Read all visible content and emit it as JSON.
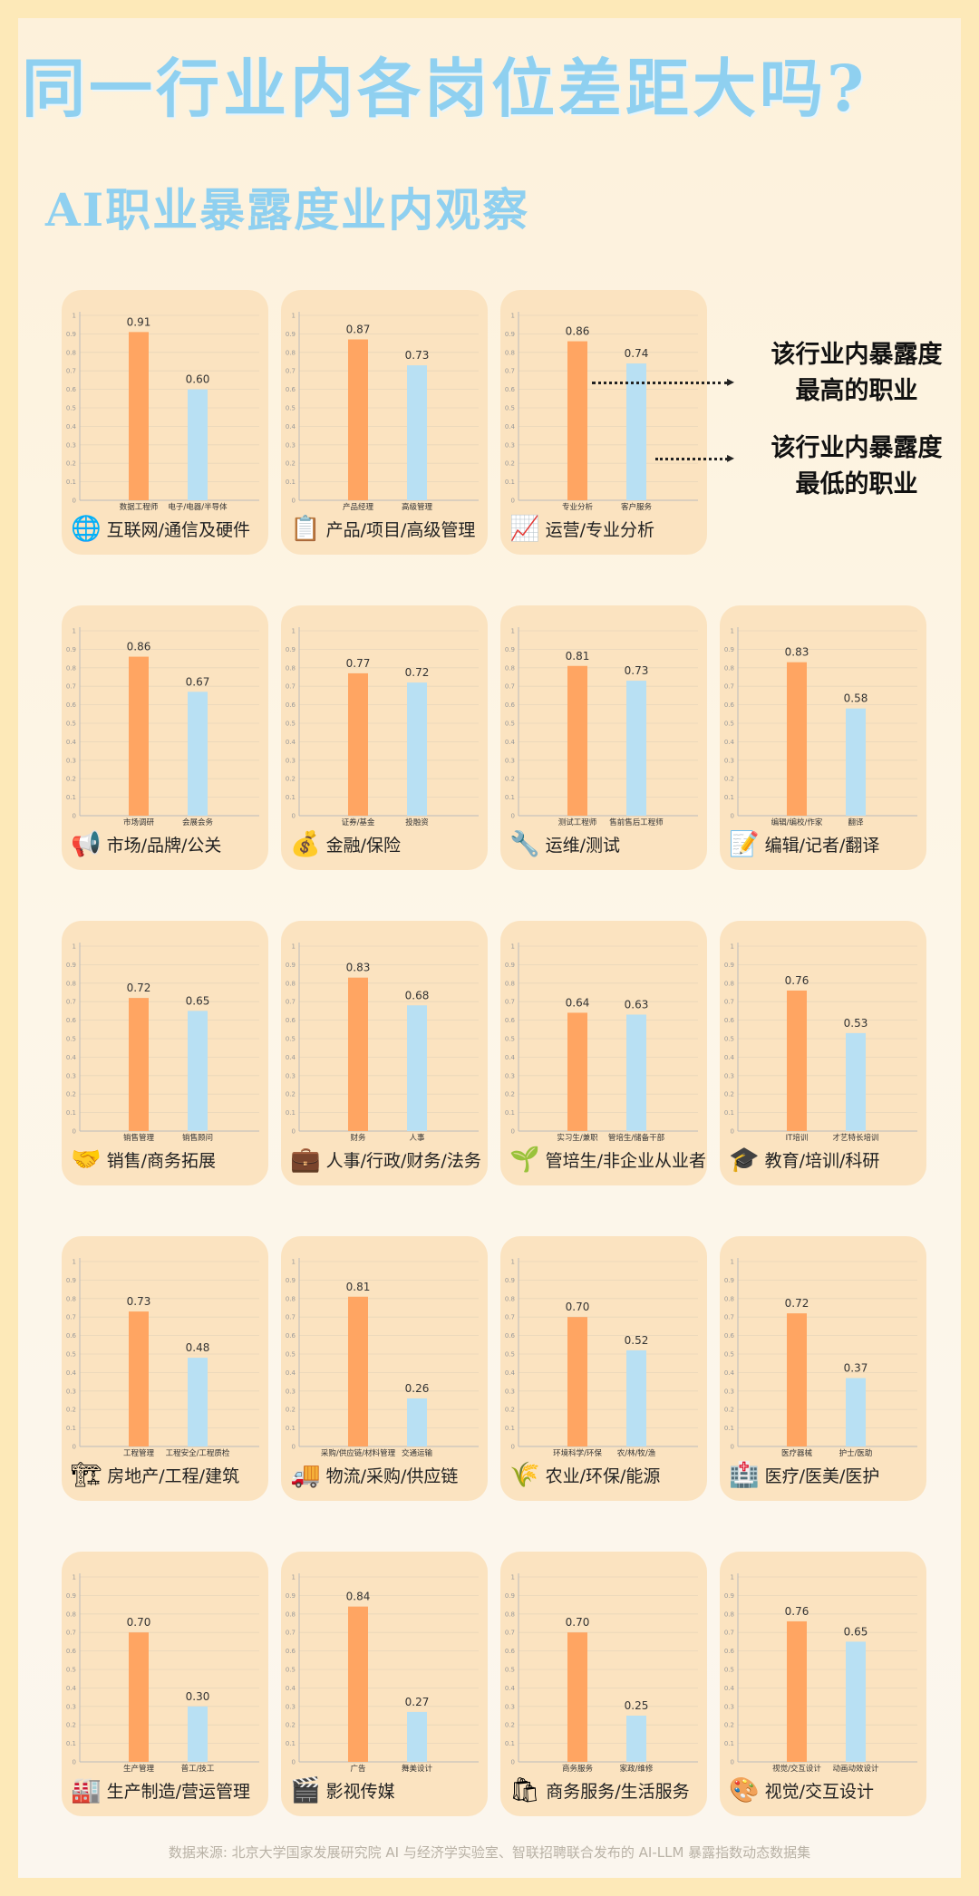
{
  "title": "同一行业内各岗位差距大吗?",
  "subtitle": "AI职业暴露度业内观察",
  "legend": {
    "highest": [
      "该行业内暴露度",
      "最高的职业"
    ],
    "lowest": [
      "该行业内暴露度",
      "最低的职业"
    ]
  },
  "source": "数据来源: 北京大学国家发展研究院 AI 与经济学实验室、智联招聘联合发布的 AI-LLM 暴露指数动态数据集",
  "colors": {
    "highest": "#ffa562",
    "lowest": "#b8e0f3",
    "card": "#fbe3c0",
    "title": "#8fd0f0"
  },
  "y_ticks": [
    "0",
    "0.1",
    "0.2",
    "0.3",
    "0.4",
    "0.5",
    "0.6",
    "0.7",
    "0.8",
    "0.9",
    "1"
  ],
  "chart_data": [
    {
      "type": "bar",
      "title": "互联网/通信及硬件",
      "icon": "globe-icon",
      "glyph": "🌐",
      "categories": [
        "数据工程师",
        "电子/电器/半导体"
      ],
      "values": [
        0.91,
        0.6
      ],
      "labels": [
        "0.91",
        "0.60"
      ],
      "ylim": [
        0,
        1
      ]
    },
    {
      "type": "bar",
      "title": "产品/项目/高级管理",
      "icon": "clipboard-icon",
      "glyph": "📋",
      "categories": [
        "产品经理",
        "高级管理"
      ],
      "values": [
        0.87,
        0.73
      ],
      "labels": [
        "0.87",
        "0.73"
      ],
      "ylim": [
        0,
        1
      ]
    },
    {
      "type": "bar",
      "title": "运营/专业分析",
      "icon": "chart-icon",
      "glyph": "📈",
      "categories": [
        "专业分析",
        "客户服务"
      ],
      "values": [
        0.86,
        0.74
      ],
      "labels": [
        "0.86",
        "0.74"
      ],
      "ylim": [
        0,
        1
      ]
    },
    {
      "type": "bar",
      "title": "市场/品牌/公关",
      "icon": "megaphone-icon",
      "glyph": "📢",
      "categories": [
        "市场调研",
        "会展会务"
      ],
      "values": [
        0.86,
        0.67
      ],
      "labels": [
        "0.86",
        "0.67"
      ],
      "ylim": [
        0,
        1
      ]
    },
    {
      "type": "bar",
      "title": "金融/保险",
      "icon": "money-bag-icon",
      "glyph": "💰",
      "categories": [
        "证券/基金",
        "投融资"
      ],
      "values": [
        0.77,
        0.72
      ],
      "labels": [
        "0.77",
        "0.72"
      ],
      "ylim": [
        0,
        1
      ]
    },
    {
      "type": "bar",
      "title": "运维/测试",
      "icon": "wrench-icon",
      "glyph": "🔧",
      "categories": [
        "测试工程师",
        "售前售后工程师"
      ],
      "values": [
        0.81,
        0.73
      ],
      "labels": [
        "0.81",
        "0.73"
      ],
      "ylim": [
        0,
        1
      ]
    },
    {
      "type": "bar",
      "title": "编辑/记者/翻译",
      "icon": "memo-icon",
      "glyph": "📝",
      "categories": [
        "编辑/编校/作家",
        "翻译"
      ],
      "values": [
        0.83,
        0.58
      ],
      "labels": [
        "0.83",
        "0.58"
      ],
      "ylim": [
        0,
        1
      ]
    },
    {
      "type": "bar",
      "title": "销售/商务拓展",
      "icon": "handshake-icon",
      "glyph": "🤝",
      "categories": [
        "销售管理",
        "销售顾问"
      ],
      "values": [
        0.72,
        0.65
      ],
      "labels": [
        "0.72",
        "0.65"
      ],
      "ylim": [
        0,
        1
      ]
    },
    {
      "type": "bar",
      "title": "人事/行政/财务/法务",
      "icon": "briefcase-icon",
      "glyph": "💼",
      "categories": [
        "财务",
        "人事"
      ],
      "values": [
        0.83,
        0.68
      ],
      "labels": [
        "0.83",
        "0.68"
      ],
      "ylim": [
        0,
        1
      ]
    },
    {
      "type": "bar",
      "title": "管培生/非企业从业者",
      "icon": "seedling-icon",
      "glyph": "🌱",
      "categories": [
        "实习生/兼职",
        "管培生/储备干部"
      ],
      "values": [
        0.64,
        0.63
      ],
      "labels": [
        "0.64",
        "0.63"
      ],
      "ylim": [
        0,
        1
      ]
    },
    {
      "type": "bar",
      "title": "教育/培训/科研",
      "icon": "graduation-cap-icon",
      "glyph": "🎓",
      "categories": [
        "IT培训",
        "才艺特长培训"
      ],
      "values": [
        0.76,
        0.53
      ],
      "labels": [
        "0.76",
        "0.53"
      ],
      "ylim": [
        0,
        1
      ]
    },
    {
      "type": "bar",
      "title": "房地产/工程/建筑",
      "icon": "crane-icon",
      "glyph": "🏗",
      "categories": [
        "工程管理",
        "工程安全/工程质检"
      ],
      "values": [
        0.73,
        0.48
      ],
      "labels": [
        "0.73",
        "0.48"
      ],
      "ylim": [
        0,
        1
      ]
    },
    {
      "type": "bar",
      "title": "物流/采购/供应链",
      "icon": "truck-icon",
      "glyph": "🚚",
      "categories": [
        "采购/供应链/材料管理",
        "交通运输"
      ],
      "values": [
        0.81,
        0.26
      ],
      "labels": [
        "0.81",
        "0.26"
      ],
      "ylim": [
        0,
        1
      ]
    },
    {
      "type": "bar",
      "title": "农业/环保/能源",
      "icon": "wheat-icon",
      "glyph": "🌾",
      "categories": [
        "环境科学/环保",
        "农/林/牧/渔"
      ],
      "values": [
        0.7,
        0.52
      ],
      "labels": [
        "0.70",
        "0.52"
      ],
      "ylim": [
        0,
        1
      ]
    },
    {
      "type": "bar",
      "title": "医疗/医美/医护",
      "icon": "hospital-icon",
      "glyph": "🏥",
      "categories": [
        "医疗器械",
        "护士/医助"
      ],
      "values": [
        0.72,
        0.37
      ],
      "labels": [
        "0.72",
        "0.37"
      ],
      "ylim": [
        0,
        1
      ]
    },
    {
      "type": "bar",
      "title": "生产制造/营运管理",
      "icon": "factory-icon",
      "glyph": "🏭",
      "categories": [
        "生产管理",
        "普工/技工"
      ],
      "values": [
        0.7,
        0.3
      ],
      "labels": [
        "0.70",
        "0.30"
      ],
      "ylim": [
        0,
        1
      ]
    },
    {
      "type": "bar",
      "title": "影视传媒",
      "icon": "clapperboard-icon",
      "glyph": "🎬",
      "categories": [
        "广告",
        "舞美设计"
      ],
      "values": [
        0.84,
        0.27
      ],
      "labels": [
        "0.84",
        "0.27"
      ],
      "ylim": [
        0,
        1
      ]
    },
    {
      "type": "bar",
      "title": "商务服务/生活服务",
      "icon": "shopping-bags-icon",
      "glyph": "🛍",
      "categories": [
        "商务服务",
        "家政/维修"
      ],
      "values": [
        0.7,
        0.25
      ],
      "labels": [
        "0.70",
        "0.25"
      ],
      "ylim": [
        0,
        1
      ]
    },
    {
      "type": "bar",
      "title": "视觉/交互设计",
      "icon": "palette-icon",
      "glyph": "🎨",
      "categories": [
        "视觉/交互设计",
        "动画动效设计"
      ],
      "values": [
        0.76,
        0.65
      ],
      "labels": [
        "0.76",
        "0.65"
      ],
      "ylim": [
        0,
        1
      ]
    }
  ]
}
